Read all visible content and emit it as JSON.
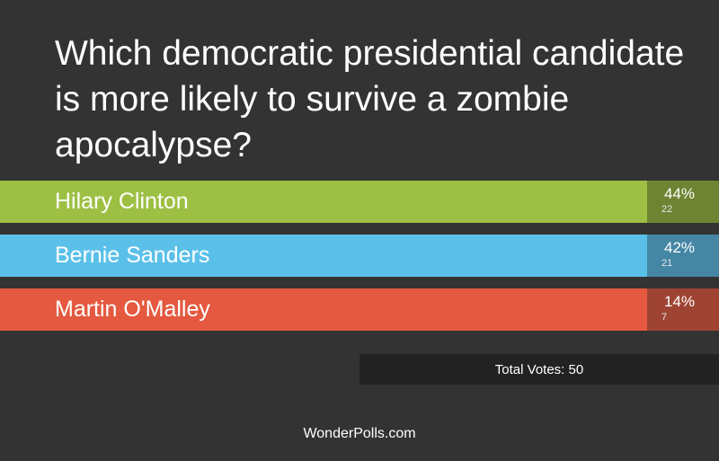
{
  "poll": {
    "question": "Which democratic presidential candidate is more likely to survive a zombie apocalypse?",
    "options": [
      {
        "label": "Hilary Clinton",
        "percent": "44%",
        "votes": "22",
        "color": "#9dc044",
        "stat_color": "#6f8433"
      },
      {
        "label": "Bernie Sanders",
        "percent": "42%",
        "votes": "21",
        "color": "#5bc0e9",
        "stat_color": "#4586a5"
      },
      {
        "label": "Martin O'Malley",
        "percent": "14%",
        "votes": "7",
        "color": "#e4593f",
        "stat_color": "#9f4433"
      }
    ],
    "total_votes_label": "Total Votes: 50",
    "footer": "WonderPolls.com"
  },
  "colors": {
    "background": "#333333",
    "total_box": "#222222"
  }
}
